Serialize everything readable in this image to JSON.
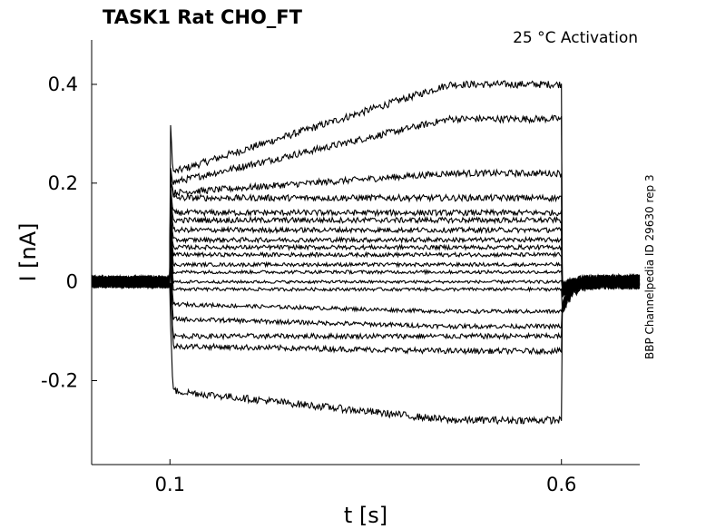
{
  "chart_data": {
    "type": "line",
    "title": "TASK1  Rat  CHO_FT",
    "condition": "25 °C  Activation",
    "side_label": "BBP Channelpedia ID 29630 rep 3",
    "xlabel": "t [s]",
    "ylabel": "I [nA]",
    "xlim": [
      0.0,
      0.7
    ],
    "ylim": [
      -0.37,
      0.49
    ],
    "xticks": [
      0.1,
      0.6
    ],
    "xtick_labels": [
      "0.1",
      "0.6"
    ],
    "yticks": [
      0.4,
      0.2,
      0,
      -0.2
    ],
    "ytick_labels": [
      "0.4",
      "0.2",
      "0",
      "-0.2"
    ],
    "grid": false,
    "line_color": "#000000",
    "pulse": {
      "start": 0.1,
      "end": 0.6
    },
    "series": [
      {
        "start": 0.22,
        "end": 0.4
      },
      {
        "start": 0.2,
        "end": 0.33
      },
      {
        "start": 0.18,
        "end": 0.22
      },
      {
        "start": 0.17,
        "end": 0.17
      },
      {
        "start": 0.14,
        "end": 0.14
      },
      {
        "start": 0.125,
        "end": 0.125
      },
      {
        "start": 0.105,
        "end": 0.105
      },
      {
        "start": 0.085,
        "end": 0.085
      },
      {
        "start": 0.07,
        "end": 0.07
      },
      {
        "start": 0.055,
        "end": 0.055
      },
      {
        "start": 0.035,
        "end": 0.035
      },
      {
        "start": 0.02,
        "end": 0.02
      },
      {
        "start": 0.0,
        "end": 0.0
      },
      {
        "start": -0.015,
        "end": -0.015
      },
      {
        "start": -0.045,
        "end": -0.06
      },
      {
        "start": -0.075,
        "end": -0.09
      },
      {
        "start": -0.11,
        "end": -0.11
      },
      {
        "start": -0.13,
        "end": -0.14
      },
      {
        "start": -0.22,
        "end": -0.28
      }
    ]
  }
}
